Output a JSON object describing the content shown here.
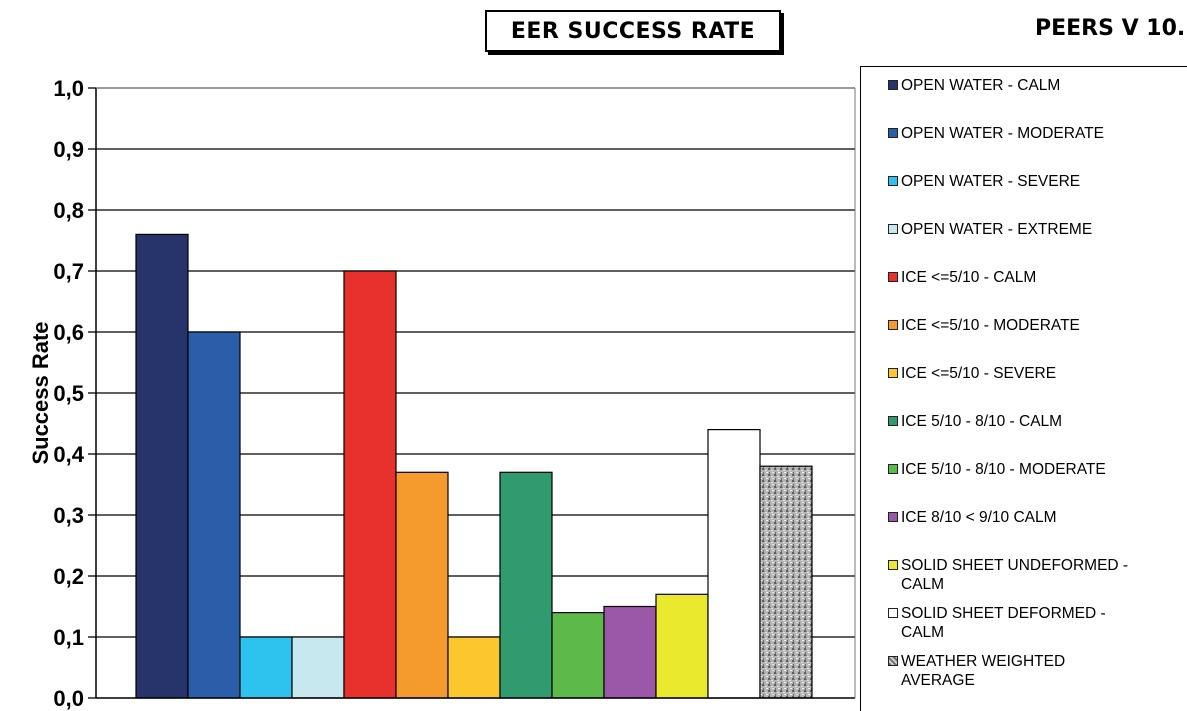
{
  "chart_data": {
    "type": "bar",
    "title": "EER SUCCESS RATE",
    "subtitle": "PEERS V 10.",
    "ylabel": "Success Rate",
    "xlabel": "",
    "ylim": [
      0,
      1
    ],
    "yticks": [
      "0,0",
      "0,1",
      "0,2",
      "0,3",
      "0,4",
      "0,5",
      "0,6",
      "0,7",
      "0,8",
      "0,9",
      "1,0"
    ],
    "grid": true,
    "legend_position": "right",
    "series": [
      {
        "name": "OPEN WATER - CALM",
        "value": 0.76,
        "color": "#27336b",
        "pattern": "solid"
      },
      {
        "name": "OPEN WATER - MODERATE",
        "value": 0.6,
        "color": "#2a5ea8",
        "pattern": "solid"
      },
      {
        "name": "OPEN WATER - SEVERE",
        "value": 0.1,
        "color": "#2ec3ee",
        "pattern": "solid"
      },
      {
        "name": "OPEN WATER - EXTREME",
        "value": 0.1,
        "color": "#c8e8f0",
        "pattern": "solid"
      },
      {
        "name": "ICE <=5/10 - CALM",
        "value": 0.7,
        "color": "#e8312c",
        "pattern": "solid"
      },
      {
        "name": "ICE <=5/10 - MODERATE",
        "value": 0.37,
        "color": "#f59a2d",
        "pattern": "solid"
      },
      {
        "name": "ICE <=5/10 - SEVERE",
        "value": 0.1,
        "color": "#fcc72c",
        "pattern": "solid"
      },
      {
        "name": "ICE 5/10 - 8/10 - CALM",
        "value": 0.37,
        "color": "#2f9b6f",
        "pattern": "solid"
      },
      {
        "name": "ICE 5/10 - 8/10 - MODERATE",
        "value": 0.14,
        "color": "#5cb94a",
        "pattern": "solid"
      },
      {
        "name": "ICE  8/10 < 9/10 CALM",
        "value": 0.15,
        "color": "#9b58a8",
        "pattern": "solid"
      },
      {
        "name": "SOLID SHEET UNDEFORMED -\nCALM",
        "value": 0.17,
        "color": "#ebe92d",
        "pattern": "solid"
      },
      {
        "name": "SOLID SHEET DEFORMED -\nCALM",
        "value": 0.44,
        "color": "#ffffff",
        "pattern": "solid"
      },
      {
        "name": "WEATHER WEIGHTED\nAVERAGE",
        "value": 0.38,
        "color": "#a3a3a3",
        "pattern": "granite"
      }
    ]
  }
}
